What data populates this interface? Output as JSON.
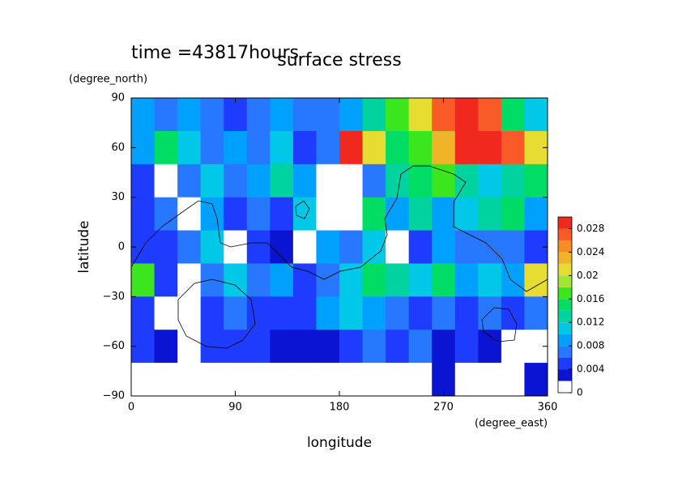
{
  "chart_data": {
    "type": "contour",
    "title": "surface stress",
    "subtitle": "time =43817hours",
    "x_label": "longitude",
    "y_label": "latitude",
    "x_units": "(degree_east)",
    "y_units": "(degree_north)",
    "x": [
      10,
      30,
      50,
      70,
      90,
      110,
      130,
      150,
      170,
      190,
      210,
      230,
      250,
      270,
      290,
      310,
      330,
      350
    ],
    "y": [
      80,
      60,
      40,
      20,
      0,
      -20,
      -40,
      -60,
      -80
    ],
    "z": [
      [
        0.008,
        0.006,
        0.008,
        0.006,
        0.004,
        0.006,
        0.008,
        0.006,
        0.006,
        0.008,
        0.012,
        0.016,
        0.02,
        0.026,
        0.03,
        0.026,
        0.014,
        0.01
      ],
      [
        0.008,
        0.014,
        0.01,
        0.006,
        0.008,
        0.006,
        0.01,
        0.004,
        0.006,
        0.028,
        0.02,
        0.014,
        0.016,
        0.022,
        0.03,
        0.03,
        0.026,
        0.02
      ],
      [
        0.004,
        0,
        0.006,
        0.01,
        0.006,
        0.008,
        0.012,
        0.008,
        0,
        0,
        0.006,
        0.012,
        0.014,
        0.016,
        0.012,
        0.01,
        0.012,
        0.014
      ],
      [
        0.004,
        0.006,
        0,
        0.008,
        0.004,
        0.006,
        0.004,
        0.01,
        0,
        0,
        0.014,
        0.008,
        0.012,
        0.008,
        0.01,
        0.012,
        0.014,
        0.008
      ],
      [
        0.004,
        0.004,
        0.006,
        0.01,
        0,
        0.004,
        0.002,
        0,
        0.008,
        0.006,
        0.01,
        0,
        0.004,
        0.008,
        0.006,
        0.006,
        0.006,
        0.004
      ],
      [
        0.016,
        0.004,
        0,
        0.006,
        0.01,
        0.006,
        0.008,
        0.004,
        0.006,
        0.01,
        0.014,
        0.012,
        0.01,
        0.014,
        0.008,
        0.01,
        0.008,
        0.02
      ],
      [
        0.004,
        0,
        0,
        0.004,
        0.006,
        0.004,
        0.004,
        0.004,
        0.008,
        0.01,
        0.008,
        0.006,
        0.004,
        0.006,
        0.004,
        0.006,
        0.004,
        0.006
      ],
      [
        0.004,
        0.002,
        0,
        0.004,
        0.004,
        0.004,
        0.002,
        0.002,
        0.002,
        0.004,
        0.006,
        0.004,
        0.006,
        0.002,
        0.004,
        0.002,
        0,
        0
      ],
      [
        0,
        0,
        0,
        0,
        0,
        0,
        0,
        0,
        0,
        0,
        0,
        0,
        0,
        0.002,
        0,
        0,
        0,
        0.002
      ]
    ],
    "xlim": [
      0,
      360
    ],
    "ylim": [
      -90,
      90
    ],
    "xticks": [
      0,
      90,
      180,
      270,
      360
    ],
    "yticks": [
      {
        "value": -90,
        "label": "−90"
      },
      {
        "value": -60,
        "label": "−60"
      },
      {
        "value": -30,
        "label": "−30"
      },
      0,
      30,
      60,
      90
    ],
    "levels": [
      0,
      0.002,
      0.004,
      0.006,
      0.008,
      0.01,
      0.012,
      0.014,
      0.016,
      0.018,
      0.02,
      0.022,
      0.024,
      0.026,
      0.028
    ],
    "colors": [
      "#ffffff",
      "#0a14d2",
      "#1e3cff",
      "#2878ff",
      "#00a0ff",
      "#00c8e6",
      "#00d2a0",
      "#00dc64",
      "#3ce61e",
      "#a0e632",
      "#e6dc32",
      "#f0b428",
      "#fa8c28",
      "#fa5a28",
      "#f0281e"
    ],
    "clim": [
      0,
      0.03
    ],
    "cticks": [
      0,
      0.004,
      0.008,
      0.012,
      0.016,
      0.02,
      0.024,
      0.028
    ]
  }
}
